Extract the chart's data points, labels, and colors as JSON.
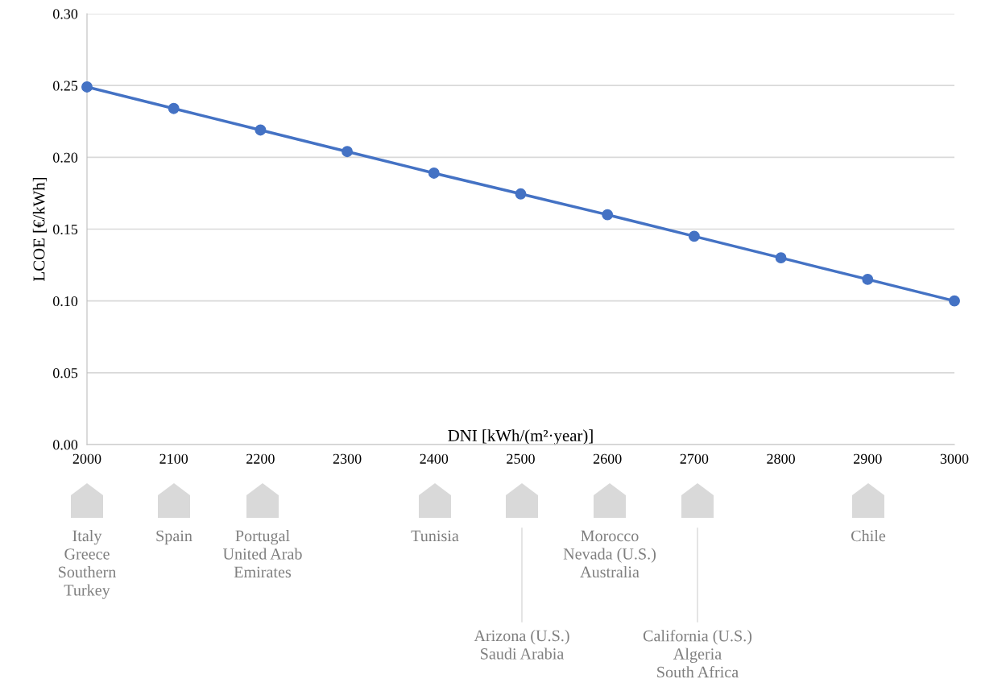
{
  "chart_data": {
    "type": "line",
    "xlabel": "DNI [kWh/(m²·year)]",
    "ylabel": "LCOE [€/kWh]",
    "x": [
      2000,
      2100,
      2200,
      2300,
      2400,
      2500,
      2600,
      2700,
      2800,
      2900,
      3000
    ],
    "series": [
      {
        "color": "#4472c4",
        "values": [
          0.249,
          0.234,
          0.219,
          0.204,
          0.189,
          0.1745,
          0.16,
          0.145,
          0.13,
          0.115,
          0.1
        ]
      }
    ],
    "xlim": [
      2000,
      3000
    ],
    "xticks": [
      2000,
      2100,
      2200,
      2300,
      2400,
      2500,
      2600,
      2700,
      2800,
      2900,
      3000
    ],
    "ylim": [
      0,
      0.3
    ],
    "yticks": [
      {
        "value": 0,
        "label": "0.00"
      },
      {
        "value": 0.05,
        "label": "0.05"
      },
      {
        "value": 0.1,
        "label": "0.10"
      },
      {
        "value": 0.15,
        "label": "0.15"
      },
      {
        "value": 0.2,
        "label": "0.20"
      },
      {
        "value": 0.25,
        "label": "0.25"
      },
      {
        "value": 0.3,
        "label": "0.30"
      }
    ],
    "grid": "y",
    "marker": "circle",
    "line_style": "solid",
    "legend": false,
    "annotations": [
      "Italy\nGreece\nSouthern\nTurkey",
      "Spain",
      "Portugal\nUnited Arab\nEmirates",
      "Tunisia",
      "Morocco\nNevada (U.S.)\nAustralia",
      "Chile",
      "Arizona (U.S.)\nSaudi Arabia",
      "California (U.S.)\nAlgeria\nSouth Africa"
    ]
  }
}
